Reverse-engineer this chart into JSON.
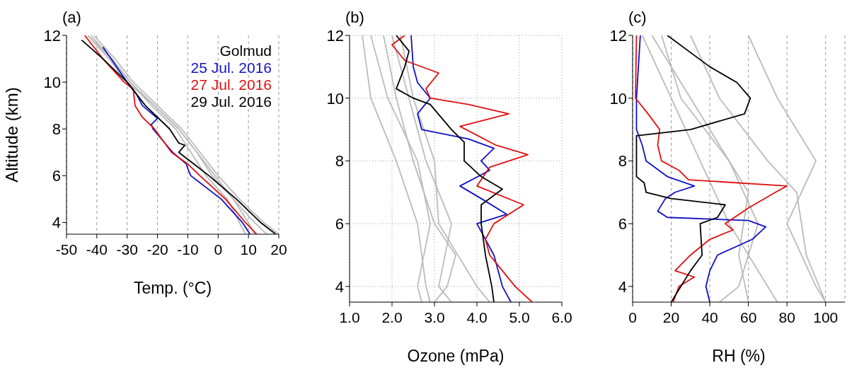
{
  "chart_data": [
    {
      "type": "line",
      "title": "(a)",
      "xlabel": "Temp. (°C)",
      "ylabel": "Altitude (km)",
      "legend_title": "Golmud",
      "legend": "top right",
      "grid": "x",
      "xlim": [
        -50,
        20
      ],
      "xticks": [
        -50,
        -40,
        -30,
        -20,
        -10,
        0,
        10,
        20
      ],
      "ylim": [
        3.5,
        12
      ],
      "yticks": [
        4,
        6,
        8,
        10,
        12
      ],
      "series": [
        {
          "color": "#bbbbbb",
          "x": [
            -43,
            -36,
            -30,
            -21,
            -13,
            -7,
            -2,
            5,
            12,
            16
          ],
          "values": [
            12,
            11,
            10,
            9,
            8,
            7,
            6,
            5,
            4,
            3.5
          ]
        },
        {
          "color": "#bbbbbb",
          "x": [
            -41,
            -34,
            -28,
            -20,
            -12,
            -6,
            0,
            7,
            15,
            20
          ],
          "values": [
            12,
            11,
            10,
            9,
            8,
            7,
            6,
            5,
            4,
            3.5
          ]
        },
        {
          "color": "#bbbbbb",
          "x": [
            -43,
            -35,
            -29,
            -22,
            -14,
            -9,
            -4,
            3,
            7,
            9
          ],
          "values": [
            12,
            11,
            10,
            9,
            8,
            7,
            6,
            5,
            4,
            3.5
          ]
        },
        {
          "color": "#bbbbbb",
          "x": [
            -42,
            -35,
            -29,
            -21,
            -13,
            -7,
            -1,
            5,
            10,
            12
          ],
          "values": [
            12,
            11,
            10,
            9,
            8,
            7,
            6,
            5,
            4,
            3.5
          ]
        },
        {
          "name": "25 Jul. 2016",
          "color": "#1010c8",
          "x": [
            -38,
            -30,
            -27,
            -25,
            -20,
            -22,
            -21.5,
            -15,
            -10.5,
            -9.7,
            -9,
            1,
            8,
            10.5
          ],
          "values": [
            11.5,
            10,
            9.5,
            9,
            8.45,
            8.2,
            8,
            7,
            6.5,
            6.2,
            6,
            5,
            4,
            3.5
          ]
        },
        {
          "name": "27 Jul. 2016",
          "color": "#e01010",
          "x": [
            -44,
            -38,
            -31,
            -28,
            -27.4,
            -25,
            -21,
            -15.4,
            -10,
            -6,
            2.4,
            9,
            12.7
          ],
          "values": [
            12,
            11,
            10,
            9.7,
            9,
            8.5,
            8,
            7,
            6.5,
            6,
            5,
            4,
            3.5
          ]
        },
        {
          "name": "29 Jul. 2016",
          "color": "#000000",
          "x": [
            -45,
            -38,
            -30,
            -24,
            -16,
            -13,
            -11,
            -13,
            -8,
            -3,
            6,
            14,
            19
          ],
          "values": [
            11.8,
            11,
            10,
            9,
            8,
            7.4,
            7.3,
            7,
            6.5,
            6,
            5,
            4,
            3.5
          ]
        }
      ]
    },
    {
      "type": "line",
      "title": "(b)",
      "xlabel": "Ozone (mPa)",
      "grid": true,
      "xlim": [
        1,
        6
      ],
      "xticks": [
        {
          "value": 1,
          "label": "1.0"
        },
        {
          "value": 2,
          "label": "2.0"
        },
        {
          "value": 3,
          "label": "3.0"
        },
        {
          "value": 4,
          "label": "4.0"
        },
        {
          "value": 5,
          "label": "5.0"
        },
        {
          "value": 6,
          "label": "6.0"
        }
      ],
      "ylim": [
        3.5,
        12
      ],
      "yticks": [
        4,
        6,
        8,
        10,
        12
      ],
      "series": [
        {
          "color": "#bbbbbb",
          "x": [
            1.3,
            1.5,
            2.1,
            2.6,
            2.8,
            2.9
          ],
          "values": [
            12,
            10,
            8,
            6,
            4,
            3.5
          ]
        },
        {
          "color": "#bbbbbb",
          "x": [
            1.8,
            2.1,
            2.5,
            3.0,
            3.5,
            3.3,
            3.0
          ],
          "values": [
            12,
            10,
            8,
            6,
            5,
            4,
            3.5
          ]
        },
        {
          "color": "#bbbbbb",
          "x": [
            2.0,
            2.4,
            2.8,
            3.4,
            3.1,
            3.4
          ],
          "values": [
            12,
            10,
            8,
            6,
            4,
            3.5
          ]
        },
        {
          "color": "#bbbbbb",
          "x": [
            1.5,
            1.9,
            2.6,
            2.9,
            2.6,
            2.7
          ],
          "values": [
            12,
            10,
            8,
            6,
            4,
            3.5
          ]
        },
        {
          "color": "#bbbbbb",
          "x": [
            2.2,
            2.5,
            3.0,
            3.1,
            4.0,
            4.3
          ],
          "values": [
            12,
            10,
            8,
            6,
            4,
            3.5
          ]
        },
        {
          "color": "#1010c8",
          "x": [
            2.45,
            2.5,
            2.6,
            2.9,
            2.6,
            2.7,
            3.8,
            4.4,
            4.1,
            4.3,
            3.6,
            4.1,
            4.7,
            4.0,
            4.4,
            4.6,
            4.8
          ],
          "values": [
            12,
            11,
            10.5,
            10,
            9.5,
            9,
            8.7,
            8.4,
            8,
            7.7,
            7.2,
            6.8,
            6.3,
            6,
            5,
            4,
            3.5
          ]
        },
        {
          "color": "#e01010",
          "x": [
            2.3,
            2.0,
            2.3,
            3.1,
            2.8,
            2.9,
            3.8,
            4.75,
            3.6,
            4.45,
            5.2,
            4.3,
            4.0,
            5.1,
            4.4,
            4.2,
            4.3,
            4.6,
            4.9,
            5.3
          ],
          "values": [
            12,
            11.7,
            11.2,
            10.8,
            10.3,
            10,
            9.8,
            9.5,
            9.1,
            8.5,
            8.2,
            7.8,
            7.2,
            6.6,
            6,
            5.5,
            5,
            4.5,
            4,
            3.5
          ]
        },
        {
          "color": "#000000",
          "x": [
            2.1,
            2.4,
            2.3,
            2.1,
            2.5,
            2.9,
            3.4,
            3.7,
            3.7,
            4.1,
            4.6,
            4.1,
            4.1,
            4.2,
            4.35,
            4.4
          ],
          "values": [
            12,
            11.5,
            11,
            10.3,
            10,
            9.8,
            9,
            8.6,
            8,
            7.5,
            7.1,
            6.6,
            6,
            5,
            4,
            3.5
          ]
        }
      ]
    },
    {
      "type": "line",
      "title": "(c)",
      "xlabel": "RH (%)",
      "grid": "x",
      "xlim": [
        0,
        110
      ],
      "xticks": [
        0,
        20,
        40,
        60,
        80,
        100
      ],
      "ylim": [
        3.5,
        12
      ],
      "yticks": [
        4,
        6,
        8,
        10,
        12
      ],
      "series": [
        {
          "color": "#bbbbbb",
          "x": [
            5,
            20,
            35,
            50,
            70,
            75
          ],
          "values": [
            12,
            10,
            8,
            6,
            4,
            3.5
          ]
        },
        {
          "color": "#bbbbbb",
          "x": [
            30,
            45,
            70,
            85,
            90,
            100
          ],
          "values": [
            12,
            10,
            8,
            7,
            5,
            3.5
          ]
        },
        {
          "color": "#bbbbbb",
          "x": [
            10,
            30,
            40,
            60,
            55,
            60
          ],
          "values": [
            12,
            10,
            9,
            7,
            5,
            3.5
          ]
        },
        {
          "color": "#bbbbbb",
          "x": [
            60,
            75,
            95,
            80,
            95,
            100
          ],
          "values": [
            12,
            10,
            8,
            6,
            4,
            3.5
          ]
        },
        {
          "color": "#bbbbbb",
          "x": [
            15,
            25,
            50,
            65,
            55,
            45
          ],
          "values": [
            12,
            10,
            8,
            6,
            4,
            3.5
          ]
        },
        {
          "color": "#1010c8",
          "x": [
            4,
            2,
            2,
            5,
            7,
            18,
            32,
            22,
            17,
            13,
            18,
            60,
            69,
            62,
            44,
            40,
            38,
            40
          ],
          "values": [
            12,
            10,
            9,
            8.5,
            8,
            7.5,
            7.2,
            7,
            6.8,
            6.4,
            6.2,
            6.1,
            5.9,
            5.5,
            5,
            4.5,
            4,
            3.5
          ]
        },
        {
          "color": "#e01010",
          "x": [
            2,
            1.5,
            8,
            14,
            13,
            15,
            24,
            29,
            80,
            74,
            60,
            48,
            52,
            40,
            30,
            22,
            32,
            24,
            21
          ],
          "values": [
            12,
            10,
            9.5,
            9,
            8.5,
            8,
            7.7,
            7.4,
            7.2,
            7,
            6.5,
            6,
            5.8,
            5.5,
            5,
            4.5,
            4.3,
            4,
            3.5
          ]
        },
        {
          "color": "#000000",
          "x": [
            18,
            40,
            54,
            61,
            58,
            30,
            2,
            2,
            6,
            7,
            20,
            48,
            44,
            35,
            36,
            30,
            25,
            20
          ],
          "values": [
            12,
            11,
            10.5,
            10,
            9.5,
            9,
            8.8,
            7.5,
            7.3,
            7,
            6.8,
            6.6,
            6.2,
            6,
            5,
            4.5,
            4,
            3.5
          ]
        }
      ]
    }
  ]
}
